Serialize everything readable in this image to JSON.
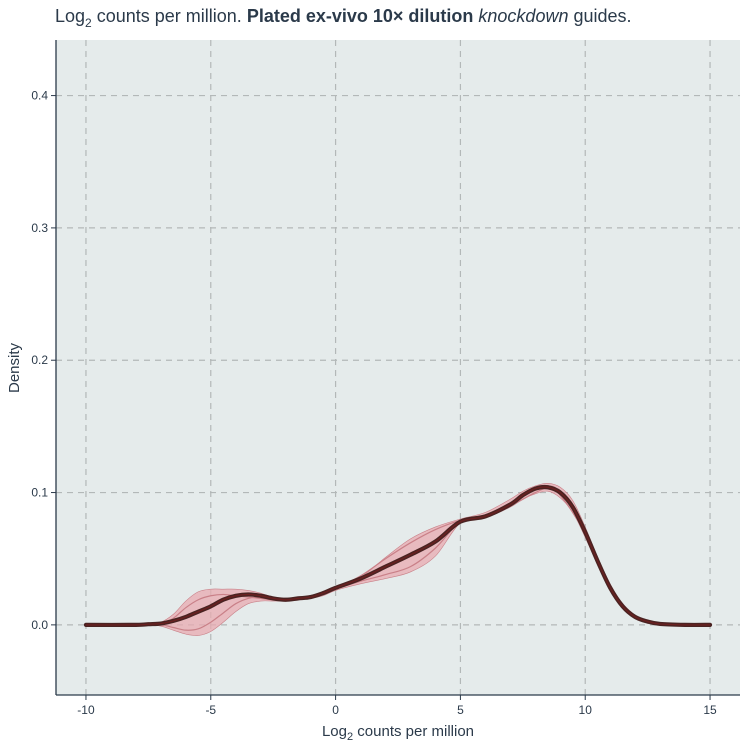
{
  "chart_data": {
    "type": "area",
    "title": {
      "prefix": "Log",
      "prefix_sub": "2",
      "part1": " counts per million. ",
      "bold": "Plated ex-vivo 10× dilution",
      "space": " ",
      "italic": "knockdown",
      "part2": " guides."
    },
    "xlabel": {
      "main": "Log",
      "sub": "2",
      "rest": " counts per million"
    },
    "ylabel": "Density",
    "xlim": [
      -11.2,
      16.2
    ],
    "ylim": [
      -0.053,
      0.442
    ],
    "xticks": [
      -10,
      -5,
      0,
      5,
      10,
      15
    ],
    "xtick_labels": [
      "-10",
      "-5",
      "0",
      "5",
      "10",
      "15"
    ],
    "yticks": [
      0.0,
      0.1,
      0.2,
      0.3,
      0.4
    ],
    "ytick_labels": [
      "0.0",
      "0.1",
      "0.2",
      "0.3",
      "0.4"
    ],
    "grid": true,
    "colors": {
      "panel": "#e5ebeb",
      "grid": "#b3b8b8",
      "axis": "#2b3a4a",
      "band": "#e8aab0",
      "replicate": "#c98088",
      "mean": "#4a2322",
      "mean_accent": "#8b1f1f"
    },
    "band": {
      "x": [
        -10,
        -8,
        -7.5,
        -7,
        -6.5,
        -6,
        -5.5,
        -5,
        -4.5,
        -4,
        -3.5,
        -3,
        -2.5,
        -2,
        -1.5,
        -1,
        -0.5,
        0,
        1,
        2,
        3,
        4,
        5,
        6,
        7,
        7.5,
        8,
        8.5,
        9,
        9.5,
        10,
        10.5,
        11,
        11.5,
        12,
        12.5,
        13,
        14,
        15
      ],
      "lower": [
        0,
        0,
        0,
        -0.001,
        -0.004,
        -0.007,
        -0.008,
        -0.005,
        0.002,
        0.01,
        0.016,
        0.018,
        0.018,
        0.018,
        0.019,
        0.02,
        0.022,
        0.026,
        0.031,
        0.035,
        0.04,
        0.052,
        0.077,
        0.081,
        0.089,
        0.095,
        0.099,
        0.101,
        0.096,
        0.085,
        0.066,
        0.045,
        0.026,
        0.013,
        0.005,
        0.002,
        0.0005,
        0,
        0
      ],
      "upper": [
        0,
        0,
        0.0005,
        0.002,
        0.008,
        0.018,
        0.025,
        0.027,
        0.027,
        0.027,
        0.026,
        0.024,
        0.021,
        0.02,
        0.02,
        0.021,
        0.024,
        0.028,
        0.036,
        0.051,
        0.065,
        0.074,
        0.08,
        0.085,
        0.095,
        0.101,
        0.105,
        0.107,
        0.104,
        0.094,
        0.074,
        0.051,
        0.031,
        0.016,
        0.007,
        0.003,
        0.001,
        0,
        0
      ]
    },
    "series": [
      {
        "role": "replicate",
        "x": [
          -10,
          -8,
          -7,
          -6.5,
          -6,
          -5.5,
          -5,
          -4.5,
          -4,
          -3.5,
          -3,
          -2.5,
          -2,
          -1,
          0,
          1,
          2,
          3,
          4,
          5,
          6,
          7,
          8,
          8.5,
          9,
          10,
          11,
          12,
          13,
          14,
          15
        ],
        "y": [
          0,
          0,
          0.001,
          0.005,
          0.013,
          0.019,
          0.022,
          0.023,
          0.022,
          0.021,
          0.02,
          0.019,
          0.019,
          0.021,
          0.027,
          0.033,
          0.038,
          0.044,
          0.058,
          0.078,
          0.083,
          0.092,
          0.103,
          0.105,
          0.1,
          0.071,
          0.029,
          0.007,
          0.001,
          0,
          0
        ]
      },
      {
        "role": "replicate",
        "x": [
          -10,
          -8,
          -7,
          -6.5,
          -6,
          -5.5,
          -5,
          -4.5,
          -4,
          -3.5,
          -3,
          -2,
          -1,
          0,
          1,
          2,
          3,
          4,
          5,
          6,
          7,
          8,
          8.5,
          9,
          10,
          11,
          12,
          13,
          14,
          15
        ],
        "y": [
          0,
          0,
          0,
          -0.002,
          -0.004,
          -0.003,
          0.002,
          0.009,
          0.016,
          0.02,
          0.021,
          0.02,
          0.022,
          0.028,
          0.037,
          0.05,
          0.062,
          0.072,
          0.079,
          0.083,
          0.09,
          0.1,
          0.103,
          0.098,
          0.069,
          0.028,
          0.006,
          0.001,
          0,
          0
        ]
      },
      {
        "role": "mean",
        "x": [
          -10,
          -8,
          -7.5,
          -7,
          -6.5,
          -6,
          -5.5,
          -5,
          -4.5,
          -4,
          -3.5,
          -3,
          -2.5,
          -2,
          -1.5,
          -1,
          -0.5,
          0,
          1,
          2,
          3,
          4,
          5,
          6,
          7,
          7.5,
          8,
          8.5,
          9,
          9.5,
          10,
          10.5,
          11,
          11.5,
          12,
          12.5,
          13,
          14,
          15
        ],
        "y": [
          0,
          0,
          0.0005,
          0.001,
          0.003,
          0.006,
          0.01,
          0.014,
          0.019,
          0.022,
          0.023,
          0.022,
          0.02,
          0.019,
          0.02,
          0.021,
          0.024,
          0.028,
          0.035,
          0.044,
          0.053,
          0.063,
          0.078,
          0.082,
          0.091,
          0.098,
          0.103,
          0.104,
          0.1,
          0.089,
          0.07,
          0.048,
          0.028,
          0.014,
          0.006,
          0.0025,
          0.0007,
          0,
          0
        ]
      }
    ]
  }
}
